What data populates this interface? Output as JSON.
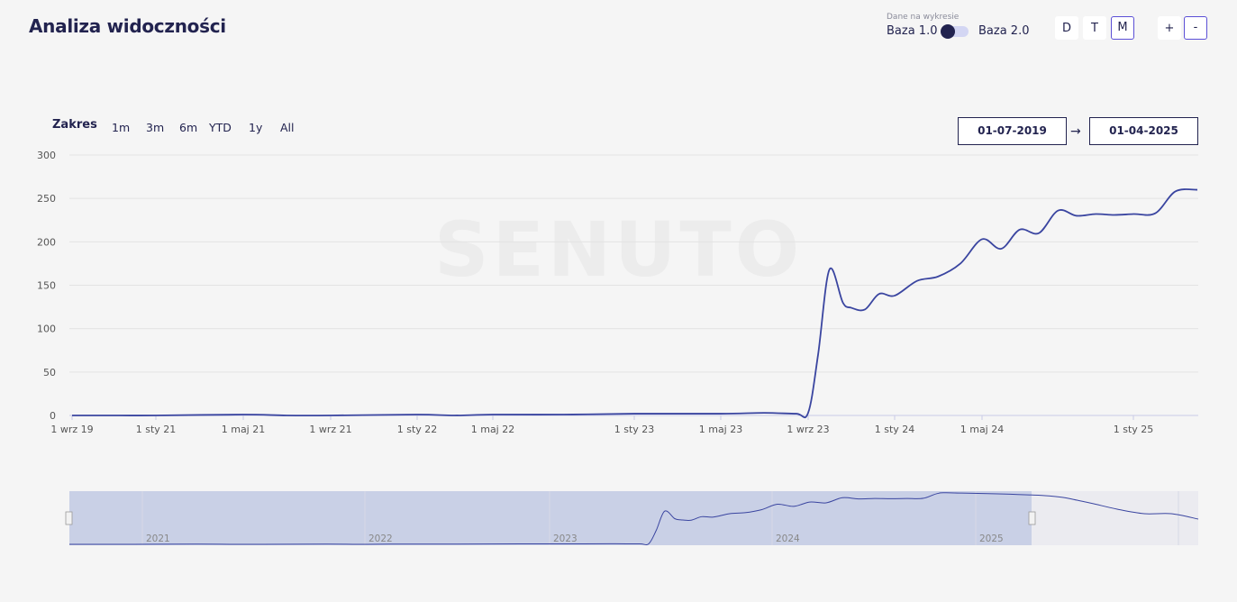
{
  "header": {
    "title": "Analiza widoczności"
  },
  "data_toggle": {
    "caption": "Dane na wykresie",
    "left_label": "Baza 1.0",
    "right_label": "Baza 2.0"
  },
  "granularity": {
    "buttons": [
      "D",
      "T",
      "M"
    ],
    "active": "M"
  },
  "zoom": {
    "plus": "+",
    "minus": "-"
  },
  "range_selector": {
    "label": "Zakres",
    "options": [
      "1m",
      "3m",
      "6m",
      "YTD",
      "1y",
      "All"
    ]
  },
  "date_range": {
    "from": "01-07-2019",
    "arrow": "→",
    "to": "01-04-2025"
  },
  "colors": {
    "line": "#3a45a0",
    "navigator_fill": "#c9d0e6",
    "title": "#22234f"
  },
  "chart_data": {
    "type": "line",
    "title": "",
    "xlabel": "",
    "ylabel": "",
    "ylim": [
      0,
      300
    ],
    "y_ticks": [
      0,
      50,
      100,
      150,
      200,
      250,
      300
    ],
    "x_ticks": [
      "1 wrz 19",
      "1 sty 21",
      "1 maj 21",
      "1 wrz 21",
      "1 sty 22",
      "1 maj 22",
      "1 sty 23",
      "1 maj 23",
      "1 wrz 23",
      "1 sty 24",
      "1 maj 24",
      "1 sty 25"
    ],
    "grid": true,
    "series": [
      {
        "x": [
          "2019-09-01",
          "2020-06-01",
          "2021-01-01",
          "2021-05-01",
          "2021-07-01",
          "2021-09-01",
          "2022-01-01",
          "2022-03-01",
          "2022-05-01",
          "2022-09-01",
          "2023-01-01",
          "2023-05-01",
          "2023-07-01",
          "2023-08-15",
          "2023-09-01",
          "2023-09-15",
          "2023-10-01",
          "2023-10-20",
          "2023-11-01",
          "2023-11-20",
          "2023-12-10",
          "2024-01-01",
          "2024-02-01",
          "2024-03-01",
          "2024-04-01",
          "2024-05-01",
          "2024-06-01",
          "2024-07-01",
          "2024-08-01",
          "2024-09-01",
          "2024-10-01",
          "2024-11-01",
          "2024-12-01",
          "2025-01-01",
          "2025-02-01",
          "2025-03-01",
          "2025-04-01"
        ],
        "values": [
          0,
          0,
          0,
          1,
          0,
          0,
          1,
          0,
          1,
          1,
          2,
          2,
          3,
          2,
          3,
          70,
          168,
          130,
          124,
          122,
          140,
          138,
          155,
          160,
          175,
          203,
          192,
          214,
          210,
          236,
          230,
          232,
          231,
          232,
          233,
          258,
          260
        ]
      }
    ],
    "navigator": {
      "year_labels": [
        "2021",
        "2022",
        "2023",
        "2024",
        "2025"
      ]
    }
  }
}
